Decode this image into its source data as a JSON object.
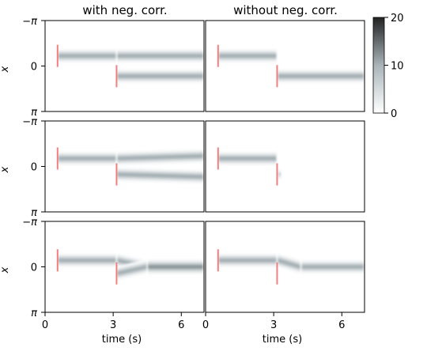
{
  "chart_data": {
    "type": "heatmap",
    "column_titles": [
      "with neg. corr.",
      "without neg. corr."
    ],
    "xlabel": "time (s)",
    "ylabel": "x",
    "xlim": [
      0,
      7
    ],
    "x_ticks": [
      0,
      3,
      6
    ],
    "x_tick_labels": [
      "0",
      "3",
      "6"
    ],
    "y_tick_labels": [
      "−π",
      "0",
      "π"
    ],
    "ylim": [
      "-π",
      "π"
    ],
    "colorbar": {
      "min": 0,
      "max": 20,
      "ticks": [
        0,
        10,
        20
      ],
      "tick_labels": [
        "0",
        "10",
        "20"
      ]
    },
    "colormap": [
      "#ffffff",
      "#a9b4b9",
      "#222222"
    ],
    "stimulus_color": "#f08080",
    "grid": false,
    "panels": [
      {
        "row": 0,
        "column": "with neg. corr.",
        "stimuli": [
          {
            "t": 0.55,
            "x": -0.7
          },
          {
            "t": 3.15,
            "x": 0.7
          }
        ],
        "bumps": [
          {
            "x_start": -0.7,
            "x_end": -0.7,
            "t_start": 0.55,
            "t_end": 3.15,
            "peak": 11,
            "width": 0.22
          },
          {
            "x_start": -0.7,
            "x_end": -0.7,
            "t_start": 3.15,
            "t_end": 7.0,
            "peak": 11,
            "width": 0.22
          },
          {
            "x_start": 0.7,
            "x_end": 0.7,
            "t_start": 3.15,
            "t_end": 7.0,
            "peak": 11,
            "width": 0.22
          }
        ]
      },
      {
        "row": 0,
        "column": "without neg. corr.",
        "stimuli": [
          {
            "t": 0.55,
            "x": -0.7
          },
          {
            "t": 3.15,
            "x": 0.7
          }
        ],
        "bumps": [
          {
            "x_start": -0.7,
            "x_end": -0.7,
            "t_start": 0.55,
            "t_end": 3.15,
            "peak": 11,
            "width": 0.22
          },
          {
            "x_start": 0.7,
            "x_end": 0.7,
            "t_start": 3.15,
            "t_end": 7.0,
            "peak": 11,
            "width": 0.22
          }
        ]
      },
      {
        "row": 1,
        "column": "with neg. corr.",
        "stimuli": [
          {
            "t": 0.55,
            "x": -0.55
          },
          {
            "t": 3.15,
            "x": 0.55
          }
        ],
        "bumps": [
          {
            "x_start": -0.55,
            "x_end": -0.55,
            "t_start": 0.55,
            "t_end": 3.15,
            "peak": 11,
            "width": 0.22
          },
          {
            "x_start": -0.55,
            "x_end": -0.72,
            "t_start": 3.15,
            "t_end": 7.0,
            "peak": 11,
            "width": 0.22
          },
          {
            "x_start": 0.55,
            "x_end": 0.72,
            "t_start": 3.15,
            "t_end": 7.0,
            "peak": 11,
            "width": 0.22
          }
        ]
      },
      {
        "row": 1,
        "column": "without neg. corr.",
        "stimuli": [
          {
            "t": 0.55,
            "x": -0.55
          },
          {
            "t": 3.15,
            "x": 0.55
          }
        ],
        "bumps": [
          {
            "x_start": -0.55,
            "x_end": -0.55,
            "t_start": 0.55,
            "t_end": 3.15,
            "peak": 11,
            "width": 0.22
          },
          {
            "x_start": 0.55,
            "x_end": 0.55,
            "t_start": 3.15,
            "t_end": 3.35,
            "peak": 6,
            "width": 0.18
          }
        ]
      },
      {
        "row": 2,
        "column": "with neg. corr.",
        "stimuli": [
          {
            "t": 0.55,
            "x": -0.45
          },
          {
            "t": 3.15,
            "x": 0.45
          }
        ],
        "bumps": [
          {
            "x_start": -0.45,
            "x_end": -0.45,
            "t_start": 0.55,
            "t_end": 3.15,
            "peak": 11,
            "width": 0.22
          },
          {
            "x_start": -0.45,
            "x_end": 0.0,
            "t_start": 3.15,
            "t_end": 4.5,
            "peak": 11,
            "width": 0.22
          },
          {
            "x_start": 0.45,
            "x_end": 0.0,
            "t_start": 3.15,
            "t_end": 4.5,
            "peak": 11,
            "width": 0.22
          },
          {
            "x_start": 0.0,
            "x_end": 0.0,
            "t_start": 4.5,
            "t_end": 7.0,
            "peak": 13,
            "width": 0.24
          }
        ]
      },
      {
        "row": 2,
        "column": "without neg. corr.",
        "stimuli": [
          {
            "t": 0.55,
            "x": -0.45
          },
          {
            "t": 3.15,
            "x": 0.45
          }
        ],
        "bumps": [
          {
            "x_start": -0.45,
            "x_end": -0.45,
            "t_start": 0.55,
            "t_end": 3.15,
            "peak": 11,
            "width": 0.22
          },
          {
            "x_start": -0.45,
            "x_end": 0.0,
            "t_start": 3.15,
            "t_end": 4.2,
            "peak": 11,
            "width": 0.22
          },
          {
            "x_start": 0.0,
            "x_end": 0.0,
            "t_start": 4.2,
            "t_end": 7.0,
            "peak": 11,
            "width": 0.22
          }
        ]
      }
    ]
  }
}
